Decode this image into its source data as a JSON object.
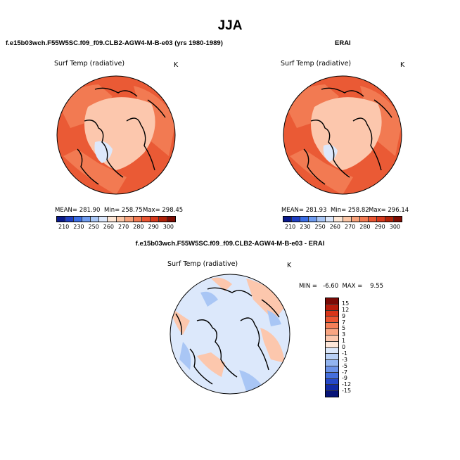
{
  "page": {
    "title": "JJA",
    "bottom_title": "f.e15b03wch.F55W5SC.f09_f09.CLB2-AGW4-M-B-e03 - ERAI"
  },
  "panels": [
    {
      "title": "f.e15b03wch.F55W5SC.f09_f09.CLB2-AGW4-M-B-e03 (yrs 1980-1989)",
      "variable": "Surf Temp (radiative)",
      "unit": "K",
      "mean_text": "MEAN= 281.90",
      "min_text": "Min= 258.75",
      "max_text": "Max= 298.45",
      "mean": 281.9,
      "min": 258.75,
      "max": 298.45
    },
    {
      "title": "ERAI",
      "variable": "Surf Temp (radiative)",
      "unit": "K",
      "mean_text": "MEAN= 281.93",
      "min_text": "Min= 258.82",
      "max_text": "Max= 296.14",
      "mean": 281.93,
      "min": 258.82,
      "max": 296.14
    }
  ],
  "diff_panel": {
    "variable": "Surf Temp (radiative)",
    "unit": "K",
    "minmax_text": "MIN =   -6.60  MAX =    9.55",
    "min": -6.6,
    "max": 9.55
  },
  "abs_colorbar": {
    "ticks": [
      "210",
      "230",
      "250",
      "260",
      "270",
      "280",
      "290",
      "300"
    ],
    "colors": [
      "#0a1a8c",
      "#1f3fc4",
      "#3b6ee6",
      "#6f9cf0",
      "#a9c6f5",
      "#dde8fb",
      "#fde6d5",
      "#fbc6a6",
      "#f7a17a",
      "#f27a52",
      "#ea5633",
      "#d83a1d",
      "#b22208",
      "#7d0d03"
    ]
  },
  "diff_colorbar": {
    "ticks": [
      "15",
      "12",
      "9",
      "7",
      "5",
      "3",
      "1",
      "0",
      "-1",
      "-3",
      "-5",
      "-7",
      "-9",
      "-12",
      "-15"
    ],
    "colors": [
      "#7a0a06",
      "#b71c0c",
      "#d93519",
      "#ec5532",
      "#f47f58",
      "#f9a582",
      "#fcc7ad",
      "#fde6d8",
      "#dce8fb",
      "#b8d0f6",
      "#92b4f0",
      "#6b92e8",
      "#456fdc",
      "#2648c8",
      "#122aa6",
      "#071478"
    ]
  },
  "colors": {
    "ocean_warm": "#ea5a35",
    "land_warm": "#f27a52",
    "ice_sheet": "#fcc7ad",
    "greenland_core": "#dde8fb",
    "diff_background": "#dce8fb",
    "diff_warm": "#fcc7ad",
    "diff_cool": "#a9c6f5"
  }
}
